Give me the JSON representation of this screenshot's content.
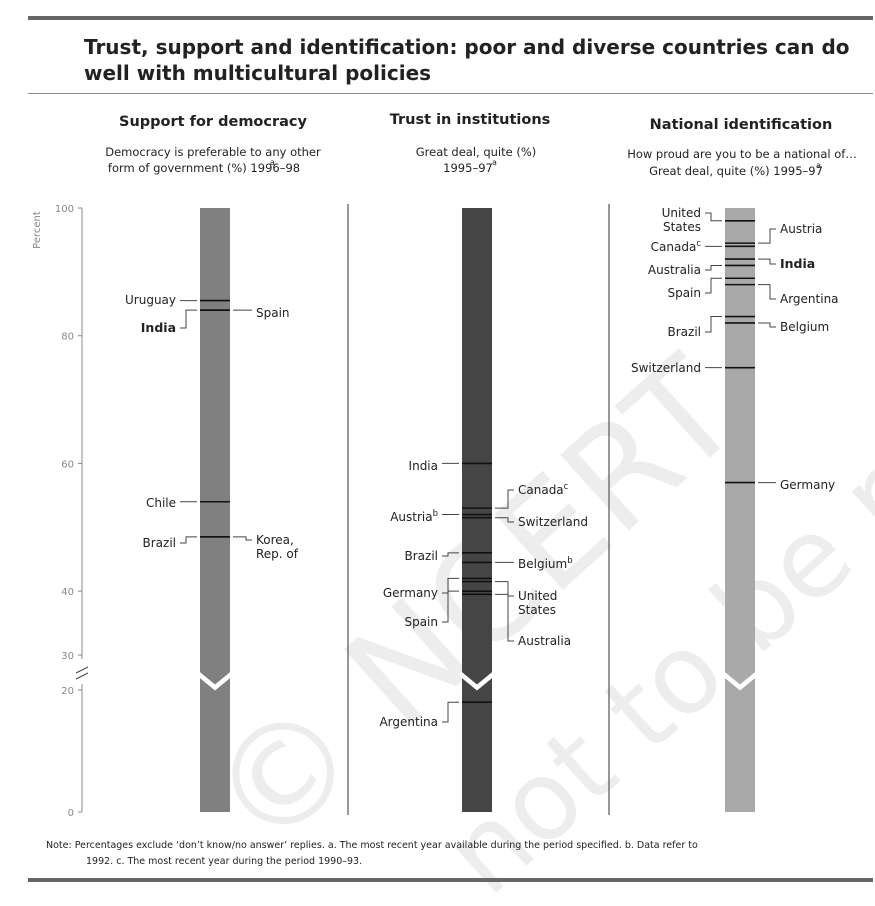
{
  "chart_data": {
    "type": "bar",
    "title": "Trust, support and identification: poor and diverse countries can do",
    "title_line2": "well with multicultural policies",
    "ylabel": "Percent",
    "yticks": [
      0,
      20,
      30,
      40,
      60,
      80,
      100
    ],
    "ylim": [
      0,
      100
    ],
    "axis_break": [
      20,
      30
    ],
    "panels": [
      {
        "title": "Support for democracy",
        "subtitle": "Democracy is preferable to any other",
        "subtitle2": "form of government (%) 1996–98",
        "subtitle_note": "a",
        "bar_color": "#808080",
        "items": [
          {
            "label": "Uruguay",
            "value": 85.5,
            "side": "left",
            "bold": false
          },
          {
            "label": "Spain",
            "value": 84.0,
            "side": "right",
            "bold": false
          },
          {
            "label": "India",
            "value": 84.0,
            "side": "left",
            "bold": true
          },
          {
            "label": "Chile",
            "value": 54.0,
            "side": "left",
            "bold": false
          },
          {
            "label": "Brazil",
            "value": 48.5,
            "side": "left",
            "bold": false
          },
          {
            "label": "Korea,",
            "label2": "Rep. of",
            "value": 48.5,
            "side": "right",
            "bold": false
          }
        ]
      },
      {
        "title": "Trust in institutions",
        "subtitle": "Great deal, quite (%)",
        "subtitle2": "1995–97",
        "subtitle_note": "a",
        "bar_color": "#454545",
        "items": [
          {
            "label": "India",
            "value": 60.0,
            "side": "left",
            "bold": false
          },
          {
            "label": "Canada",
            "note": "c",
            "value": 53.0,
            "side": "right",
            "bold": false
          },
          {
            "label": "Austria",
            "note": "b",
            "value": 52.0,
            "side": "left",
            "bold": false
          },
          {
            "label": "Switzerland",
            "value": 51.5,
            "side": "right",
            "bold": false
          },
          {
            "label": "Brazil",
            "value": 46.0,
            "side": "left",
            "bold": false
          },
          {
            "label": "Belgium",
            "note": "b",
            "value": 44.5,
            "side": "right",
            "bold": false
          },
          {
            "label": "Germany",
            "value": 42.0,
            "side": "left",
            "bold": false
          },
          {
            "label": "United",
            "label2": "States",
            "value": 41.5,
            "side": "right",
            "bold": false
          },
          {
            "label": "Spain",
            "value": 40.0,
            "side": "left",
            "bold": false
          },
          {
            "label": "Australia",
            "value": 39.5,
            "side": "right",
            "bold": false
          },
          {
            "label": "Argentina",
            "value": 18.0,
            "side": "left",
            "bold": false
          }
        ]
      },
      {
        "title": "National identification",
        "subtitle": "How proud are you to be a national of…",
        "subtitle2": "Great deal, quite (%) 1995–97",
        "subtitle_note": "a",
        "bar_color": "#a9a9a9",
        "items": [
          {
            "label": "United",
            "label2": "States",
            "value": 98.0,
            "side": "left",
            "bold": false
          },
          {
            "label": "Austria",
            "value": 94.5,
            "side": "right",
            "bold": false
          },
          {
            "label": "Canada",
            "note": "c",
            "value": 94.0,
            "side": "left",
            "bold": false
          },
          {
            "label": "India",
            "value": 92.0,
            "side": "right",
            "bold": true
          },
          {
            "label": "Australia",
            "value": 91.0,
            "side": "left",
            "bold": false
          },
          {
            "label": "Spain",
            "value": 89.0,
            "side": "left",
            "bold": false
          },
          {
            "label": "Argentina",
            "value": 88.0,
            "side": "right",
            "bold": false
          },
          {
            "label": "Brazil",
            "value": 83.0,
            "side": "left",
            "bold": false
          },
          {
            "label": "Belgium",
            "value": 82.0,
            "side": "right",
            "bold": false
          },
          {
            "label": "Switzerland",
            "value": 75.0,
            "side": "left",
            "bold": false
          },
          {
            "label": "Germany",
            "value": 57.0,
            "side": "right",
            "bold": false
          }
        ]
      }
    ],
    "note_line1": "Note:  Percentages exclude ‘don’t know/no answer’ replies. a. The most recent year available during the period specified. b. Data refer to",
    "note_line2": "1992.  c. The most recent year during the period 1990–93.",
    "watermark1": "© NCERT",
    "watermark2": "not to be republished"
  }
}
